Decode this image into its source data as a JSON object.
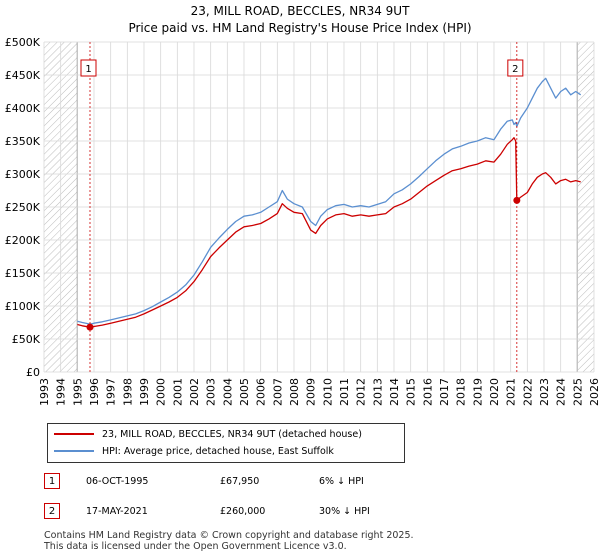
{
  "chart_data": {
    "type": "line",
    "title": "23, MILL ROAD, BECCLES, NR34 9UT",
    "subtitle": "Price paid vs. HM Land Registry's House Price Index (HPI)",
    "xlim": [
      1993,
      2026
    ],
    "ylim": [
      0,
      500000
    ],
    "x_ticks": [
      "1993",
      "1994",
      "1995",
      "1996",
      "1997",
      "1998",
      "1999",
      "2000",
      "2001",
      "2002",
      "2003",
      "2004",
      "2005",
      "2006",
      "2007",
      "2008",
      "2009",
      "2010",
      "2011",
      "2012",
      "2013",
      "2014",
      "2015",
      "2016",
      "2017",
      "2018",
      "2019",
      "2020",
      "2021",
      "2022",
      "2023",
      "2024",
      "2025",
      "2026"
    ],
    "y_ticks": [
      {
        "value": 0,
        "label": "£0"
      },
      {
        "value": 50000,
        "label": "£50K"
      },
      {
        "value": 100000,
        "label": "£100K"
      },
      {
        "value": 150000,
        "label": "£150K"
      },
      {
        "value": 200000,
        "label": "£200K"
      },
      {
        "value": 250000,
        "label": "£250K"
      },
      {
        "value": 300000,
        "label": "£300K"
      },
      {
        "value": 350000,
        "label": "£350K"
      },
      {
        "value": 400000,
        "label": "£400K"
      },
      {
        "value": 450000,
        "label": "£450K"
      },
      {
        "value": 500000,
        "label": "£500K"
      }
    ],
    "hatched_ranges": [
      [
        1993,
        1995.0
      ],
      [
        2025.0,
        2026
      ]
    ],
    "series": [
      {
        "name": "23, MILL ROAD, BECCLES, NR34 9UT (detached house)",
        "color": "#cc0000",
        "x": [
          1995.0,
          1995.3,
          1995.76,
          1996.0,
          1996.5,
          1997.0,
          1997.5,
          1998.0,
          1998.5,
          1999.0,
          1999.5,
          2000.0,
          2000.5,
          2001.0,
          2001.5,
          2002.0,
          2002.5,
          2003.0,
          2003.5,
          2004.0,
          2004.5,
          2005.0,
          2005.5,
          2006.0,
          2006.5,
          2007.0,
          2007.3,
          2007.6,
          2008.0,
          2008.5,
          2009.0,
          2009.3,
          2009.6,
          2010.0,
          2010.5,
          2011.0,
          2011.5,
          2012.0,
          2012.5,
          2013.0,
          2013.5,
          2014.0,
          2014.5,
          2015.0,
          2015.5,
          2016.0,
          2016.5,
          2017.0,
          2017.5,
          2018.0,
          2018.5,
          2019.0,
          2019.5,
          2020.0,
          2020.4,
          2020.8,
          2021.1,
          2021.2,
          2021.3,
          2021.37,
          2021.6,
          2022.0,
          2022.3,
          2022.6,
          2022.9,
          2023.1,
          2023.4,
          2023.7,
          2024.0,
          2024.3,
          2024.6,
          2024.9,
          2025.2
        ],
        "values": [
          72000,
          70000,
          67950,
          69000,
          71000,
          74000,
          77000,
          80000,
          83000,
          88000,
          94000,
          100000,
          106000,
          113000,
          123000,
          137000,
          155000,
          175000,
          188000,
          200000,
          212000,
          220000,
          222000,
          225000,
          232000,
          240000,
          255000,
          248000,
          242000,
          240000,
          215000,
          210000,
          222000,
          232000,
          238000,
          240000,
          236000,
          238000,
          236000,
          238000,
          240000,
          250000,
          255000,
          262000,
          272000,
          282000,
          290000,
          298000,
          305000,
          308000,
          312000,
          315000,
          320000,
          318000,
          330000,
          345000,
          352000,
          355000,
          350000,
          260000,
          265000,
          272000,
          285000,
          295000,
          300000,
          302000,
          295000,
          285000,
          290000,
          292000,
          288000,
          290000,
          288000
        ]
      },
      {
        "name": "HPI: Average price, detached house, East Suffolk",
        "color": "#5b8fd0",
        "x": [
          1995.0,
          1995.3,
          1995.76,
          1996.0,
          1996.5,
          1997.0,
          1997.5,
          1998.0,
          1998.5,
          1999.0,
          1999.5,
          2000.0,
          2000.5,
          2001.0,
          2001.5,
          2002.0,
          2002.5,
          2003.0,
          2003.5,
          2004.0,
          2004.5,
          2005.0,
          2005.5,
          2006.0,
          2006.5,
          2007.0,
          2007.3,
          2007.6,
          2008.0,
          2008.5,
          2009.0,
          2009.3,
          2009.6,
          2010.0,
          2010.5,
          2011.0,
          2011.5,
          2012.0,
          2012.5,
          2013.0,
          2013.5,
          2014.0,
          2014.5,
          2015.0,
          2015.5,
          2016.0,
          2016.5,
          2017.0,
          2017.5,
          2018.0,
          2018.5,
          2019.0,
          2019.5,
          2020.0,
          2020.4,
          2020.8,
          2021.1,
          2021.2,
          2021.3,
          2021.37,
          2021.6,
          2022.0,
          2022.3,
          2022.6,
          2022.9,
          2023.1,
          2023.4,
          2023.7,
          2024.0,
          2024.3,
          2024.6,
          2024.9,
          2025.2
        ],
        "values": [
          77000,
          75000,
          72500,
          74000,
          76000,
          79000,
          82000,
          85000,
          88000,
          93000,
          99000,
          106000,
          113000,
          121000,
          132000,
          147000,
          167000,
          189000,
          203000,
          216000,
          228000,
          236000,
          238000,
          242000,
          250000,
          258000,
          275000,
          262000,
          255000,
          250000,
          228000,
          222000,
          236000,
          246000,
          252000,
          254000,
          250000,
          252000,
          250000,
          254000,
          258000,
          270000,
          276000,
          285000,
          296000,
          308000,
          320000,
          330000,
          338000,
          342000,
          347000,
          350000,
          355000,
          352000,
          368000,
          380000,
          382000,
          375000,
          378000,
          372000,
          385000,
          400000,
          415000,
          430000,
          440000,
          445000,
          430000,
          415000,
          425000,
          430000,
          420000,
          425000,
          420000
        ]
      }
    ],
    "markers": [
      {
        "id": "1",
        "x": 1995.76,
        "value": 67950
      },
      {
        "id": "2",
        "x": 2021.37,
        "value": 260000
      }
    ]
  },
  "legend": {
    "property": "23, MILL ROAD, BECCLES, NR34 9UT (detached house)",
    "hpi": "HPI: Average price, detached house, East Suffolk"
  },
  "transactions": [
    {
      "num": "1",
      "date": "06-OCT-1995",
      "price": "£67,950",
      "hpi": "6% ↓ HPI"
    },
    {
      "num": "2",
      "date": "17-MAY-2021",
      "price": "£260,000",
      "hpi": "30% ↓ HPI"
    }
  ],
  "footer": {
    "line1": "Contains HM Land Registry data © Crown copyright and database right 2025.",
    "line2": "This data is licensed under the Open Government Licence v3.0."
  },
  "colors": {
    "property": "#cc0000",
    "hpi": "#5b8fd0",
    "grid": "#d8d8d8",
    "marker_line": "#cc0000"
  }
}
